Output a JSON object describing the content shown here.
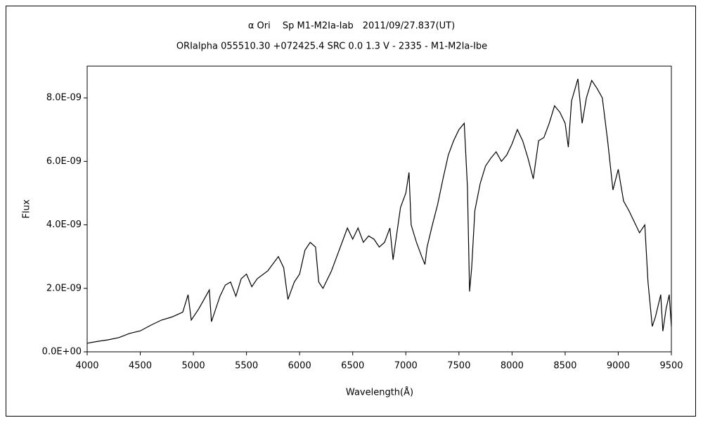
{
  "chart_data": {
    "type": "line",
    "title": "α Ori　 Sp M1-M2Ia-Iab　2011/09/27.837(UT)",
    "subtitle": "ORIalpha 055510.30 +072425.4 SRC 0.0 1.3 V - 2335 - M1-M2Ia-Ibe",
    "xlabel": "Wavelength(Å)",
    "ylabel": "Flux",
    "color": "#000000",
    "grid": false,
    "xlim": [
      4000,
      9500
    ],
    "xticks": [
      4000,
      4500,
      5000,
      5500,
      6000,
      6500,
      7000,
      7500,
      8000,
      8500,
      9000,
      9500
    ],
    "ylim": [
      0,
      9e-09
    ],
    "yticks": [
      {
        "value": 0,
        "label": "0.0E+00"
      },
      {
        "value": 2e-09,
        "label": "2.0E-09"
      },
      {
        "value": 4e-09,
        "label": "4.0E-09"
      },
      {
        "value": 6e-09,
        "label": "6.0E-09"
      },
      {
        "value": 8e-09,
        "label": "8.0E-09"
      }
    ],
    "x": [
      4000,
      4100,
      4200,
      4300,
      4400,
      4500,
      4600,
      4700,
      4800,
      4900,
      4950,
      4980,
      5050,
      5100,
      5150,
      5170,
      5250,
      5300,
      5350,
      5400,
      5450,
      5500,
      5550,
      5600,
      5700,
      5800,
      5850,
      5890,
      5950,
      6000,
      6050,
      6100,
      6150,
      6180,
      6220,
      6300,
      6350,
      6400,
      6450,
      6500,
      6550,
      6600,
      6650,
      6700,
      6750,
      6800,
      6850,
      6880,
      6950,
      7000,
      7030,
      7050,
      7100,
      7150,
      7180,
      7200,
      7250,
      7300,
      7350,
      7400,
      7450,
      7500,
      7550,
      7580,
      7600,
      7620,
      7650,
      7700,
      7750,
      7800,
      7850,
      7900,
      7950,
      8000,
      8050,
      8100,
      8150,
      8200,
      8250,
      8300,
      8350,
      8400,
      8450,
      8500,
      8530,
      8560,
      8620,
      8660,
      8700,
      8750,
      8800,
      8850,
      8900,
      8950,
      9000,
      9050,
      9100,
      9150,
      9200,
      9250,
      9280,
      9320,
      9350,
      9400,
      9420,
      9450,
      9480,
      9500
    ],
    "values": [
      2.7e-10,
      3.3e-10,
      3.8e-10,
      4.5e-10,
      5.8e-10,
      6.6e-10,
      8.4e-10,
      1e-09,
      1.1e-09,
      1.25e-09,
      1.8e-09,
      1e-09,
      1.35e-09,
      1.65e-09,
      1.95e-09,
      9.5e-10,
      1.75e-09,
      2.1e-09,
      2.2e-09,
      1.75e-09,
      2.3e-09,
      2.45e-09,
      2.05e-09,
      2.3e-09,
      2.55e-09,
      3e-09,
      2.65e-09,
      1.65e-09,
      2.2e-09,
      2.45e-09,
      3.2e-09,
      3.45e-09,
      3.3e-09,
      2.2e-09,
      2e-09,
      2.55e-09,
      3e-09,
      3.45e-09,
      3.9e-09,
      3.55e-09,
      3.9e-09,
      3.45e-09,
      3.65e-09,
      3.55e-09,
      3.3e-09,
      3.45e-09,
      3.9e-09,
      2.9e-09,
      4.55e-09,
      5e-09,
      5.65e-09,
      4e-09,
      3.45e-09,
      3e-09,
      2.75e-09,
      3.3e-09,
      4e-09,
      4.65e-09,
      5.45e-09,
      6.2e-09,
      6.65e-09,
      7e-09,
      7.2e-09,
      5.2e-09,
      1.9e-09,
      2.65e-09,
      4.45e-09,
      5.3e-09,
      5.85e-09,
      6.1e-09,
      6.3e-09,
      6e-09,
      6.2e-09,
      6.55e-09,
      7e-09,
      6.65e-09,
      6.1e-09,
      5.45e-09,
      6.65e-09,
      6.75e-09,
      7.2e-09,
      7.75e-09,
      7.55e-09,
      7.2e-09,
      6.45e-09,
      7.9e-09,
      8.6e-09,
      7.2e-09,
      8e-09,
      8.55e-09,
      8.3e-09,
      8e-09,
      6.65e-09,
      5.1e-09,
      5.75e-09,
      4.75e-09,
      4.45e-09,
      4.1e-09,
      3.75e-09,
      4e-09,
      2.2e-09,
      8e-10,
      1.1e-09,
      1.8e-09,
      6.5e-10,
      1.35e-09,
      1.8e-09,
      8e-10
    ]
  }
}
